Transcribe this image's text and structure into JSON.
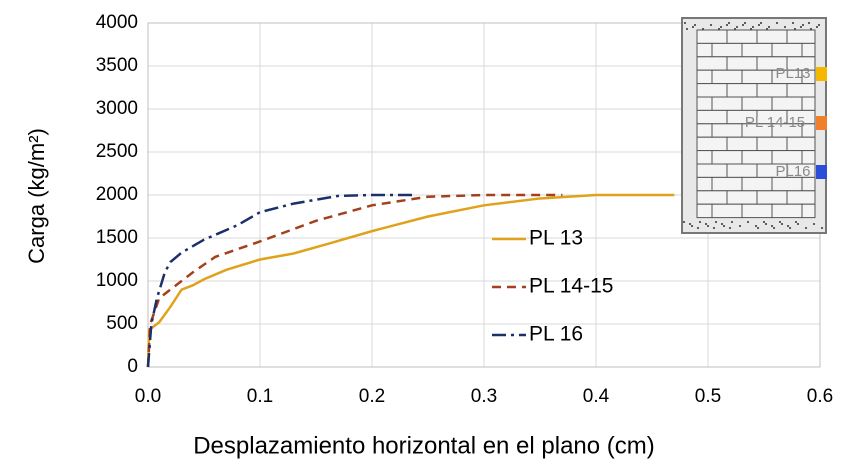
{
  "chart_data": {
    "type": "line",
    "x_label": "Desplazamiento horizontal en el plano (cm)",
    "y_label": "Carga (kg/m²)",
    "xlim": [
      0,
      0.6
    ],
    "xticks": [
      {
        "value": 0,
        "label": "0.0"
      },
      0.1,
      0.2,
      0.3,
      0.4,
      0.5,
      0.6
    ],
    "ylim": [
      0,
      4000
    ],
    "yticks": [
      0,
      500,
      1000,
      1500,
      2000,
      2500,
      3000,
      3500,
      4000
    ],
    "grid": true,
    "legend_position": "center",
    "series": [
      {
        "name": "PL 13",
        "color": "#e0a21a",
        "linestyle": "solid",
        "x": [
          0,
          0.001,
          0.01,
          0.02,
          0.03,
          0.04,
          0.05,
          0.07,
          0.1,
          0.13,
          0.16,
          0.2,
          0.25,
          0.3,
          0.35,
          0.4,
          0.47
        ],
        "values": [
          0,
          430,
          520,
          700,
          900,
          950,
          1020,
          1130,
          1250,
          1320,
          1430,
          1580,
          1750,
          1880,
          1960,
          2000,
          2000
        ]
      },
      {
        "name": "PL 14-15",
        "color": "#a5401c",
        "linestyle": "dashed",
        "x": [
          0,
          0.002,
          0.01,
          0.02,
          0.04,
          0.06,
          0.1,
          0.15,
          0.2,
          0.25,
          0.3,
          0.37
        ],
        "values": [
          0,
          500,
          800,
          900,
          1100,
          1280,
          1460,
          1700,
          1880,
          1980,
          2000,
          2000
        ]
      },
      {
        "name": "PL 16",
        "color": "#1c2f6b",
        "linestyle": "dashdot",
        "x": [
          0,
          0.003,
          0.008,
          0.015,
          0.02,
          0.03,
          0.05,
          0.08,
          0.1,
          0.13,
          0.17,
          0.2,
          0.24
        ],
        "values": [
          0,
          500,
          800,
          1100,
          1220,
          1330,
          1480,
          1650,
          1800,
          1900,
          1990,
          2000,
          2000
        ]
      }
    ],
    "inset": {
      "labels": [
        "PL13",
        "PL 14-15",
        "PL16"
      ],
      "colors": [
        "#f5b800",
        "#f07f2c",
        "#2b4ed8"
      ]
    }
  }
}
